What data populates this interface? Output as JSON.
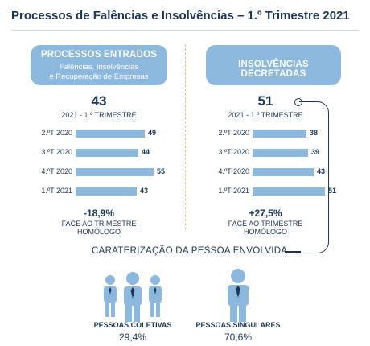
{
  "title": "Processos de Falências e Insolvências – 1.º Trimestre 2021",
  "colors": {
    "bar": "#8db8dd",
    "text": "#1b3556",
    "accent": "#e8c46a"
  },
  "left": {
    "header": "PROCESSOS ENTRADOS",
    "subheader_line1": "Falências, Insolvências",
    "subheader_line2": "e Recuperação de Empresas",
    "total": "43",
    "period": "2021 - 1.º TRIMESTRE",
    "change": "-18,9%",
    "change_note_line1": "FACE AO TRIMESTRE",
    "change_note_line2": "HOMÓLOGO"
  },
  "right": {
    "header": "INSOLVÊNCIAS DECRETADAS",
    "total": "51",
    "period": "2021 - 1.º TRIMESTRE",
    "change": "+27,5%",
    "change_note_line1": "FACE AO TRIMESTRE",
    "change_note_line2": "HOMÓLOGO"
  },
  "chart_data": [
    {
      "type": "bar",
      "orientation": "horizontal",
      "title": "PROCESSOS ENTRADOS",
      "categories": [
        "2.ºT 2020",
        "3.ºT 2020",
        "4.ºT 2020",
        "1.ºT 2021"
      ],
      "values": [
        49,
        44,
        55,
        43
      ]
    },
    {
      "type": "bar",
      "orientation": "horizontal",
      "title": "INSOLVÊNCIAS DECRETADAS",
      "categories": [
        "2.ºT 2020",
        "3.ºT 2020",
        "4.ºT 2020",
        "1.ºT 2021"
      ],
      "values": [
        38,
        39,
        43,
        51
      ]
    }
  ],
  "profile": {
    "title": "CARATERIZAÇÃO DA PESSOA ENVOLVIDA",
    "collective": {
      "label": "PESSOAS COLETIVAS",
      "pct": "29,4%",
      "icon": "group-of-people-icon"
    },
    "singular": {
      "label": "PESSOAS SINGULARES",
      "pct": "70,6%",
      "icon": "single-person-icon"
    }
  }
}
